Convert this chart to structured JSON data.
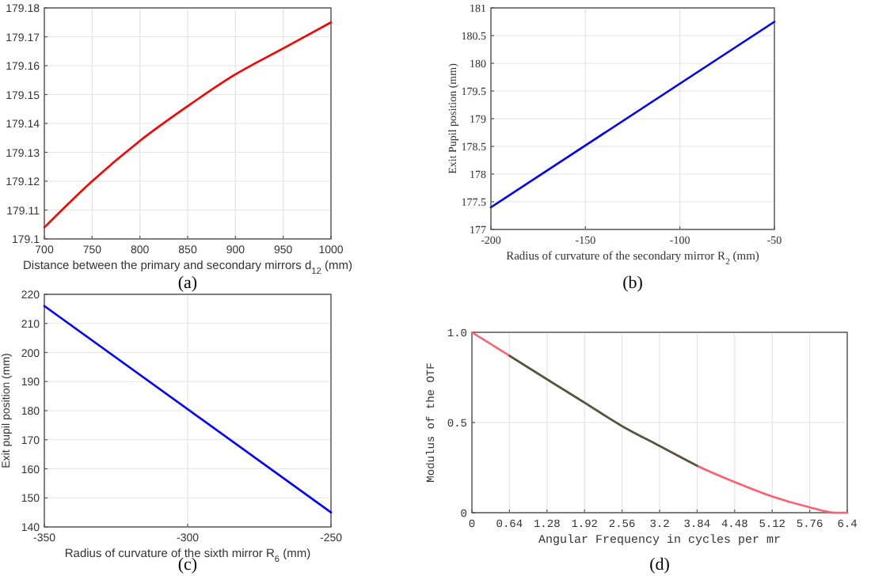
{
  "chart_data": [
    {
      "type": "line",
      "xlabel": "Distance between the primary and secondary mirrors d$_{12}$ (mm)",
      "annotations": [
        "(a)"
      ],
      "x": [
        700,
        750,
        800,
        850,
        900,
        950,
        1000
      ],
      "series": [
        {
          "color": "#ff0000",
          "values": [
            179.104,
            179.12,
            179.134,
            179.146,
            179.157,
            179.166,
            179.175
          ]
        }
      ],
      "xlim": [
        700,
        1000
      ],
      "xticks": [
        700,
        750,
        800,
        850,
        900,
        950,
        1000
      ],
      "ylim": [
        179.1,
        179.18
      ],
      "yticks": [
        179.1,
        179.11,
        179.12,
        179.13,
        179.14,
        179.15,
        179.16,
        179.17,
        179.18
      ],
      "grid": true
    },
    {
      "type": "line",
      "xlabel": "Radius of curvature of the secondary mirror R$_{2}$ (mm)",
      "ylabel": "Exit Pupil position (mm)",
      "annotations": [
        "(b)"
      ],
      "x": [
        -200,
        -50
      ],
      "series": [
        {
          "color": "#0000ff",
          "values": [
            177.4,
            180.75
          ]
        }
      ],
      "xlim": [
        -200,
        -50
      ],
      "xticks": [
        -200,
        -150,
        -100,
        -50
      ],
      "ylim": [
        177,
        181
      ],
      "yticks": [
        177,
        177.5,
        178,
        178.5,
        179,
        179.5,
        180,
        180.5,
        181
      ],
      "grid": true
    },
    {
      "type": "line",
      "xlabel": "Radius of curvature of the sixth mirror R$_{6}$ (mm)",
      "ylabel": "Exit pupil position (mm)",
      "annotations": [
        "(c)"
      ],
      "x": [
        -350,
        -250
      ],
      "series": [
        {
          "color": "#0000ff",
          "values": [
            216,
            145
          ]
        }
      ],
      "xlim": [
        -350,
        -250
      ],
      "xticks": [
        -350,
        -300,
        -250
      ],
      "ylim": [
        140,
        220
      ],
      "yticks": [
        140,
        150,
        160,
        170,
        180,
        190,
        200,
        210,
        220
      ],
      "grid": true
    },
    {
      "type": "line",
      "xlabel": "Angular Frequency in cycles per mr",
      "ylabel": "Modulus of the OTF",
      "annotations": [
        "(d)"
      ],
      "series": [
        {
          "color": "#ff6070",
          "x": [
            0,
            0.64,
            1.28,
            1.92,
            2.56,
            3.2,
            3.84,
            4.48,
            5.12,
            5.76,
            6.2,
            6.4
          ],
          "values": [
            1,
            0.87,
            0.74,
            0.61,
            0.48,
            0.37,
            0.26,
            0.17,
            0.09,
            0.03,
            0,
            0
          ]
        },
        {
          "color": "#4a5a40",
          "x": [
            0.64,
            1.28,
            1.92,
            2.56,
            3.2,
            3.84
          ],
          "values": [
            0.87,
            0.74,
            0.61,
            0.48,
            0.37,
            0.26
          ]
        }
      ],
      "xlim": [
        0,
        6.4
      ],
      "xticks": [
        0,
        0.64,
        1.28,
        1.92,
        2.56,
        3.2,
        3.84,
        4.48,
        5.12,
        5.76,
        6.4
      ],
      "ylim": [
        0,
        1
      ],
      "yticks": [
        0,
        0.5,
        {
          "value": 1,
          "label": "1.0"
        }
      ],
      "grid": true
    }
  ]
}
